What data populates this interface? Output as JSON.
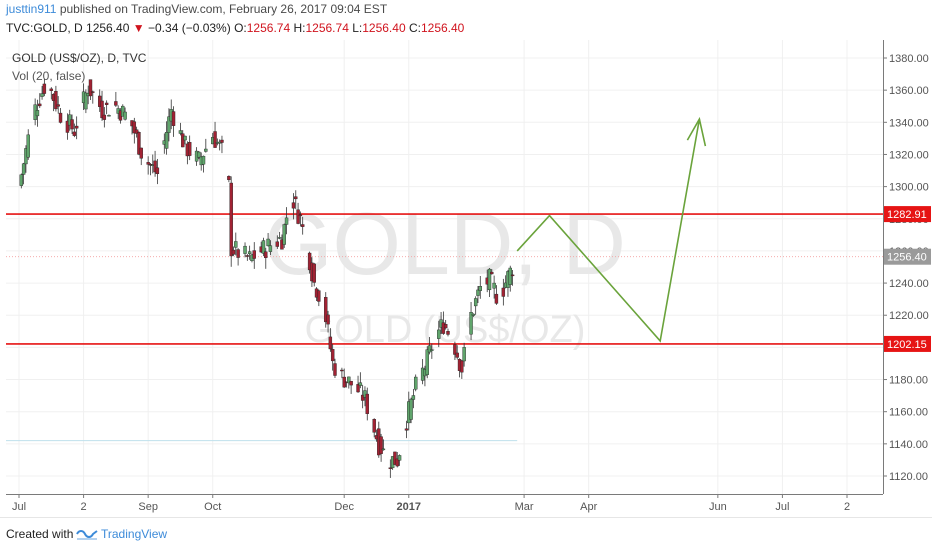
{
  "header": {
    "user": "justtin911",
    "published_text": "published on TradingView.com, February 26, 2017 09:04 EST",
    "symbol_line": "TVC:GOLD, D",
    "last": "1256.40",
    "change": "−0.34 (−0.03%)",
    "o_label": "O:",
    "o_value": "1256.74",
    "h_label": "H:",
    "h_value": "1256.74",
    "l_label": "L:",
    "l_value": "1256.40",
    "c_label": "C:",
    "c_value": "1256.40"
  },
  "chart_data": {
    "type": "candlestick",
    "title": "GOLD (US$/OZ), D, TVC",
    "indicator": "Vol (20, false)",
    "watermark_main": "GOLD, D",
    "watermark_sub": "GOLD (US$/OZ)",
    "ylim": [
      1110,
      1390
    ],
    "y_ticks": [
      1120,
      1140,
      1160,
      1180,
      1200,
      1220,
      1240,
      1260,
      1280,
      1300,
      1320,
      1340,
      1360,
      1380
    ],
    "y_tick_labels": [
      "1120.00",
      "1140.00",
      "1160.00",
      "1180.00",
      "1200.00",
      "1220.00",
      "1240.00",
      "1260.00",
      "1280.00",
      "1300.00",
      "1320.00",
      "1340.00",
      "1360.00",
      "1380.00"
    ],
    "x_ticks": [
      {
        "day": 0,
        "label": "Jul"
      },
      {
        "day": 28,
        "label": "2"
      },
      {
        "day": 56,
        "label": "Sep"
      },
      {
        "day": 84,
        "label": "Oct"
      },
      {
        "day": 141,
        "label": "Dec"
      },
      {
        "day": 169,
        "label": "2017"
      },
      {
        "day": 219,
        "label": "Mar"
      },
      {
        "day": 247,
        "label": "Apr"
      },
      {
        "day": 303,
        "label": "Jun"
      },
      {
        "day": 331,
        "label": "Jul"
      },
      {
        "day": 359,
        "label": "2"
      }
    ],
    "support_level": 1202.15,
    "resistance_level": 1282.91,
    "last_price": 1256.4,
    "price_labels": [
      {
        "value": 1282.91,
        "label": "1282.91",
        "color": "#e61414"
      },
      {
        "value": 1256.4,
        "label": "1256.40",
        "color": "#9a9a9a"
      },
      {
        "value": 1202.15,
        "label": "1202.15",
        "color": "#e61414"
      }
    ],
    "projection": [
      {
        "day": 216,
        "price": 1260
      },
      {
        "day": 230,
        "price": 1282
      },
      {
        "day": 278,
        "price": 1204
      },
      {
        "day": 295,
        "price": 1342
      }
    ],
    "candles_anchor": [
      [
        0,
        1300
      ],
      [
        6,
        1345
      ],
      [
        12,
        1366
      ],
      [
        18,
        1345
      ],
      [
        24,
        1335
      ],
      [
        30,
        1362
      ],
      [
        36,
        1348
      ],
      [
        42,
        1350
      ],
      [
        48,
        1342
      ],
      [
        54,
        1318
      ],
      [
        60,
        1308
      ],
      [
        66,
        1348
      ],
      [
        72,
        1325
      ],
      [
        78,
        1316
      ],
      [
        84,
        1332
      ],
      [
        88,
        1322
      ],
      [
        91,
        1300
      ],
      [
        92,
        1262
      ],
      [
        96,
        1258
      ],
      [
        100,
        1255
      ],
      [
        108,
        1263
      ],
      [
        114,
        1268
      ],
      [
        118,
        1295
      ],
      [
        122,
        1280
      ],
      [
        126,
        1255
      ],
      [
        128,
        1240
      ],
      [
        132,
        1228
      ],
      [
        136,
        1190
      ],
      [
        140,
        1182
      ],
      [
        146,
        1175
      ],
      [
        150,
        1168
      ],
      [
        156,
        1140
      ],
      [
        160,
        1130
      ],
      [
        164,
        1130
      ],
      [
        168,
        1155
      ],
      [
        172,
        1175
      ],
      [
        176,
        1188
      ],
      [
        180,
        1205
      ],
      [
        184,
        1215
      ],
      [
        188,
        1205
      ],
      [
        192,
        1187
      ],
      [
        196,
        1220
      ],
      [
        200,
        1237
      ],
      [
        204,
        1242
      ],
      [
        208,
        1230
      ],
      [
        212,
        1244
      ],
      [
        216,
        1256
      ]
    ],
    "colors": {
      "up": "#60a56c",
      "down": "#a12233",
      "support": "#e61414",
      "projection": "#6aa33b",
      "axis_text": "#555555"
    }
  },
  "footer": {
    "created_with": "Created with",
    "brand": "TradingView"
  }
}
